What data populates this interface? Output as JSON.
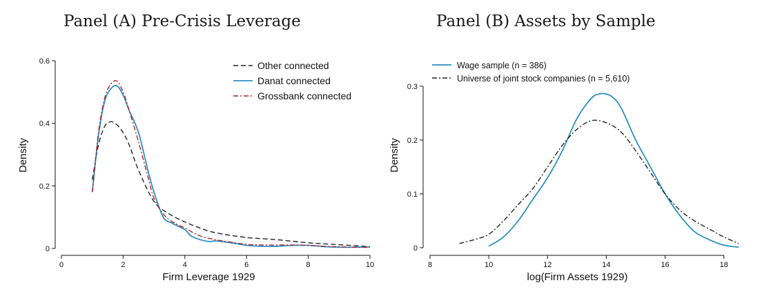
{
  "chart_data": [
    {
      "type": "line",
      "title": "Panel (A) Pre-Crisis Leverage",
      "xlabel": "Firm Leverage 1929",
      "ylabel": "Density",
      "xlim": [
        0,
        10
      ],
      "ylim": [
        0,
        0.6
      ],
      "xticks": [
        "0",
        "2",
        "4",
        "6",
        "8",
        "10"
      ],
      "yticks": [
        "0",
        "0.2",
        "0.4",
        "0.6"
      ],
      "grid": false,
      "legend": "top-right",
      "series": [
        {
          "name": "Other connected",
          "color": "#222222",
          "style": "dashed",
          "x": [
            1.0,
            1.2,
            1.4,
            1.6,
            1.8,
            2.0,
            2.2,
            2.5,
            3.0,
            3.5,
            4.0,
            4.5,
            5.0,
            6.0,
            7.0,
            8.0,
            9.0,
            10.0
          ],
          "y": [
            0.22,
            0.33,
            0.39,
            0.405,
            0.395,
            0.37,
            0.33,
            0.25,
            0.15,
            0.11,
            0.085,
            0.065,
            0.05,
            0.035,
            0.028,
            0.018,
            0.012,
            0.006
          ]
        },
        {
          "name": "Danat connected",
          "color": "#2b8fc0",
          "style": "solid",
          "x": [
            1.0,
            1.2,
            1.4,
            1.6,
            1.8,
            2.0,
            2.2,
            2.5,
            2.8,
            3.0,
            3.3,
            3.6,
            4.0,
            4.2,
            4.5,
            4.8,
            5.0,
            5.5,
            6.0,
            6.5,
            7.0,
            7.5,
            8.0,
            8.5,
            9.0,
            9.5,
            10.0
          ],
          "y": [
            0.18,
            0.36,
            0.47,
            0.51,
            0.52,
            0.49,
            0.44,
            0.37,
            0.25,
            0.18,
            0.1,
            0.08,
            0.06,
            0.04,
            0.028,
            0.022,
            0.024,
            0.018,
            0.01,
            0.007,
            0.007,
            0.01,
            0.01,
            0.006,
            0.004,
            0.004,
            0.005
          ]
        },
        {
          "name": "Grossbank connected",
          "color": "#b01e2e",
          "style": "dashdot",
          "x": [
            1.0,
            1.2,
            1.4,
            1.6,
            1.8,
            2.0,
            2.2,
            2.5,
            2.8,
            3.0,
            3.3,
            3.6,
            4.0,
            4.5,
            5.0,
            5.5,
            6.0,
            6.5,
            7.0,
            7.5,
            8.0,
            8.5,
            9.0,
            9.5,
            10.0
          ],
          "y": [
            0.18,
            0.37,
            0.48,
            0.525,
            0.535,
            0.5,
            0.44,
            0.34,
            0.23,
            0.16,
            0.11,
            0.085,
            0.065,
            0.04,
            0.028,
            0.02,
            0.013,
            0.011,
            0.011,
            0.011,
            0.01,
            0.007,
            0.005,
            0.004,
            0.003
          ]
        }
      ]
    },
    {
      "type": "line",
      "title": "Panel (B) Assets by Sample",
      "xlabel": "log(Firm Assets 1929)",
      "ylabel": "Density",
      "xlim": [
        8,
        18.5
      ],
      "ylim": [
        0,
        0.36
      ],
      "xticks": [
        "8",
        "10",
        "12",
        "14",
        "16",
        "18"
      ],
      "yticks": [
        "0",
        "0.1",
        "0.2",
        "0.3"
      ],
      "grid": false,
      "legend": "top-left",
      "series": [
        {
          "name": "Wage sample (n = 386)",
          "color": "#2b8fc0",
          "style": "solid",
          "x": [
            10.0,
            10.5,
            11.0,
            11.5,
            12.0,
            12.5,
            13.0,
            13.5,
            13.8,
            14.0,
            14.2,
            14.5,
            15.0,
            15.5,
            16.0,
            16.5,
            17.0,
            17.5,
            18.0,
            18.5
          ],
          "y": [
            0.003,
            0.02,
            0.05,
            0.09,
            0.13,
            0.18,
            0.24,
            0.278,
            0.286,
            0.285,
            0.28,
            0.26,
            0.2,
            0.15,
            0.1,
            0.06,
            0.03,
            0.015,
            0.005,
            0.001
          ]
        },
        {
          "name": "Universe of joint stock companies (n = 5,610)",
          "color": "#222222",
          "style": "dashdot",
          "x": [
            9.0,
            9.5,
            10.0,
            10.5,
            11.0,
            11.5,
            12.0,
            12.5,
            13.0,
            13.5,
            14.0,
            14.5,
            15.0,
            15.5,
            16.0,
            16.5,
            17.0,
            17.5,
            18.0,
            18.5
          ],
          "y": [
            0.008,
            0.015,
            0.025,
            0.05,
            0.08,
            0.11,
            0.15,
            0.19,
            0.22,
            0.236,
            0.232,
            0.215,
            0.18,
            0.14,
            0.1,
            0.07,
            0.05,
            0.035,
            0.02,
            0.008
          ]
        }
      ]
    }
  ]
}
